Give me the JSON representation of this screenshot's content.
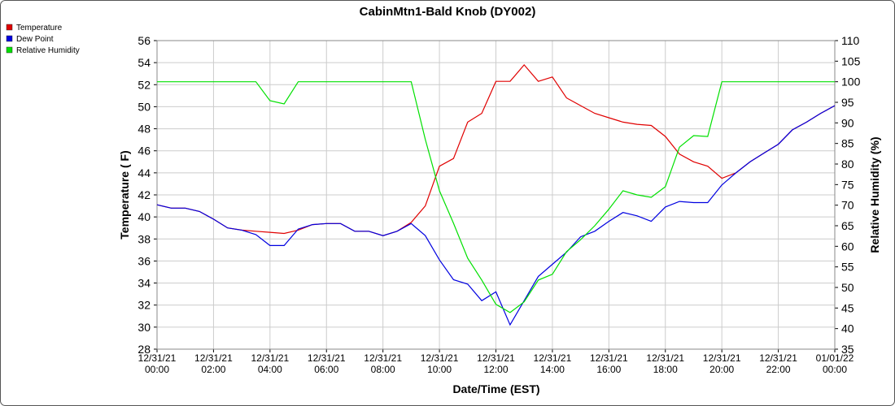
{
  "chart_data": {
    "type": "line",
    "title": "CabinMtn1-Bald Knob (DY002)",
    "x_label": "Date/Time (EST)",
    "y_label": "Temperature ( F)",
    "y2_label": "Relative Humidity (%)",
    "x": [
      "12/31/21 00:00",
      "12/31/21 00:30",
      "12/31/21 01:00",
      "12/31/21 01:30",
      "12/31/21 02:00",
      "12/31/21 02:30",
      "12/31/21 03:00",
      "12/31/21 03:30",
      "12/31/21 04:00",
      "12/31/21 04:30",
      "12/31/21 05:00",
      "12/31/21 05:30",
      "12/31/21 06:00",
      "12/31/21 06:30",
      "12/31/21 07:00",
      "12/31/21 07:30",
      "12/31/21 08:00",
      "12/31/21 08:30",
      "12/31/21 09:00",
      "12/31/21 09:30",
      "12/31/21 10:00",
      "12/31/21 10:30",
      "12/31/21 11:00",
      "12/31/21 11:30",
      "12/31/21 12:00",
      "12/31/21 12:30",
      "12/31/21 13:00",
      "12/31/21 13:30",
      "12/31/21 14:00",
      "12/31/21 14:30",
      "12/31/21 15:00",
      "12/31/21 15:30",
      "12/31/21 16:00",
      "12/31/21 16:30",
      "12/31/21 17:00",
      "12/31/21 17:30",
      "12/31/21 18:00",
      "12/31/21 18:30",
      "12/31/21 19:00",
      "12/31/21 19:30",
      "12/31/21 20:00",
      "12/31/21 20:30",
      "12/31/21 21:00",
      "12/31/21 21:30",
      "12/31/21 22:00",
      "12/31/21 22:30",
      "12/31/21 23:00",
      "12/31/21 23:30",
      "01/01/22 00:00"
    ],
    "series": [
      {
        "name": "Temperature",
        "color": "#e00000",
        "values": [
          41.1,
          40.8,
          40.8,
          40.5,
          39.8,
          39.0,
          38.8,
          38.7,
          38.6,
          38.5,
          38.8,
          39.3,
          39.4,
          39.4,
          38.7,
          38.7,
          38.3,
          38.7,
          39.5,
          41.0,
          44.6,
          45.3,
          48.6,
          49.4,
          52.3,
          52.3,
          53.8,
          52.3,
          52.7,
          50.8,
          50.1,
          49.4,
          49.0,
          48.6,
          48.4,
          48.3,
          47.3,
          45.7,
          45.0,
          44.6,
          43.5,
          44.0,
          45.0,
          45.8,
          46.6,
          47.9,
          48.6,
          49.4,
          50.1
        ]
      },
      {
        "name": "Dew Point",
        "color": "#0000e0",
        "values": [
          41.1,
          40.8,
          40.8,
          40.5,
          39.8,
          39.0,
          38.8,
          38.4,
          37.4,
          37.4,
          38.9,
          39.3,
          39.4,
          39.4,
          38.7,
          38.7,
          38.3,
          38.7,
          39.4,
          38.3,
          36.1,
          34.3,
          33.9,
          32.4,
          33.2,
          30.2,
          32.4,
          34.6,
          35.7,
          36.8,
          38.2,
          38.7,
          39.6,
          40.4,
          40.1,
          39.6,
          40.9,
          41.4,
          41.3,
          41.3,
          42.9,
          44.0,
          45.0,
          45.8,
          46.6,
          47.9,
          48.6,
          49.4,
          50.1
        ]
      },
      {
        "name": "Relative Humidity",
        "color": "#00e000",
        "axis": "y2",
        "values": [
          100,
          100,
          100,
          100,
          100,
          100,
          100,
          100,
          95.4,
          94.6,
          100,
          100,
          100,
          100,
          100,
          100,
          100,
          100,
          100,
          86,
          73.5,
          65.6,
          57.1,
          51.8,
          45.9,
          43.9,
          46.5,
          51.8,
          53.2,
          58.7,
          61.6,
          65,
          69,
          73.5,
          72.5,
          71.9,
          74.5,
          84.1,
          86.9,
          86.7,
          100,
          100,
          100,
          100,
          100,
          100,
          100,
          100,
          100
        ]
      }
    ],
    "xlim": [
      "12/31/21 00:00",
      "01/01/22 00:00"
    ],
    "xticks": [
      "12/31/21 00:00",
      "12/31/21 02:00",
      "12/31/21 04:00",
      "12/31/21 06:00",
      "12/31/21 08:00",
      "12/31/21 10:00",
      "12/31/21 12:00",
      "12/31/21 14:00",
      "12/31/21 16:00",
      "12/31/21 18:00",
      "12/31/21 20:00",
      "12/31/21 22:00",
      "01/01/22 00:00"
    ],
    "ylim": [
      28,
      56
    ],
    "yticks": [
      28,
      30,
      32,
      34,
      36,
      38,
      40,
      42,
      44,
      46,
      48,
      50,
      52,
      54,
      56
    ],
    "y2lim": [
      35,
      110
    ],
    "y2ticks": [
      35,
      40,
      45,
      50,
      55,
      60,
      65,
      70,
      75,
      80,
      85,
      90,
      95,
      100,
      105,
      110
    ],
    "grid": true,
    "legend": "top-left"
  }
}
